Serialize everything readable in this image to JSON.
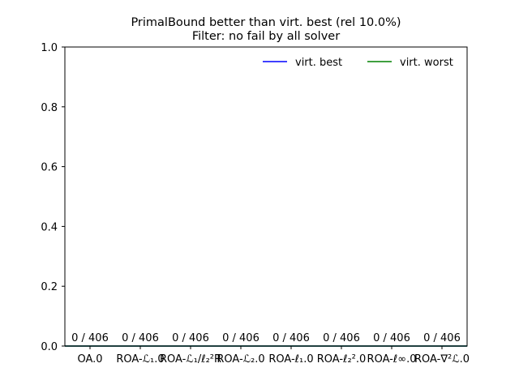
{
  "chart_data": {
    "type": "bar",
    "title": "PrimalBound better than virt. best (rel 10.0%)",
    "subtitle": "Filter: no fail by all solver",
    "xlabel": "",
    "ylabel": "",
    "ylim": [
      0,
      1.0
    ],
    "yticks": [
      "0.0",
      "0.2",
      "0.4",
      "0.6",
      "0.8",
      "1.0"
    ],
    "categories": [
      "OA.0",
      "ROA-ℒ₁.0",
      "ROA-ℒ₁/ℓ₂²R",
      "ROA-ℒ₂.0",
      "ROA-ℓ₁.0",
      "ROA-ℓ₂².0",
      "ROA-ℓ∞.0",
      "ROA-∇²ℒ.0"
    ],
    "values": [
      0,
      0,
      0,
      0,
      0,
      0,
      0,
      0
    ],
    "bar_labels": [
      "0 / 406",
      "0 / 406",
      "0 / 406",
      "0 / 406",
      "0 / 406",
      "0 / 406",
      "0 / 406",
      "0 / 406"
    ],
    "lines": [
      {
        "name": "virt. best",
        "color": "#0000ff",
        "value": 0
      },
      {
        "name": "virt. worst",
        "color": "#008000",
        "value": 0
      }
    ],
    "legend_position": "top-right",
    "grid": false
  }
}
